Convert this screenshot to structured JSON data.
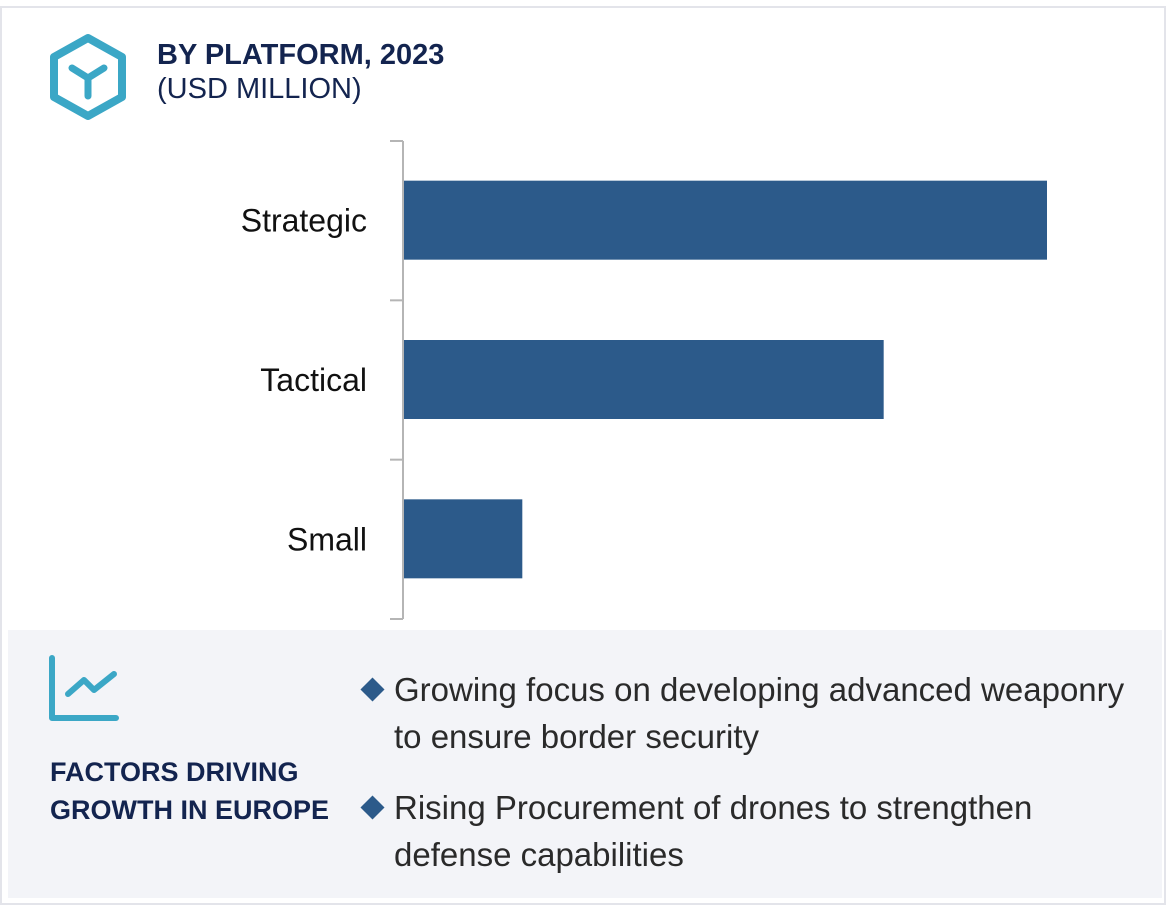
{
  "header": {
    "title": "BY PLATFORM, 2023",
    "subtitle": "(USD MILLION)",
    "icon": "hexagon-y-icon"
  },
  "chart_data": {
    "type": "bar",
    "orientation": "horizontal",
    "title": "BY PLATFORM, 2023",
    "unit": "(USD MILLION)",
    "categories": [
      "Strategic",
      "Tactical",
      "Small"
    ],
    "values": [
      100,
      74.6,
      18.4
    ],
    "value_note": "relative",
    "bar_color": "#2c5a8a",
    "grid": false,
    "legend": "none"
  },
  "factors": {
    "icon": "line-chart-icon",
    "heading": "FACTORS DRIVING GROWTH IN EUROPE",
    "items": [
      "Growing focus on developing advanced weaponry to ensure border security",
      "Rising Procurement of drones to strengthen defense capabilities"
    ]
  },
  "colors": {
    "accent": "#3ba7c6",
    "navy": "#13244f",
    "bar": "#2c5a8a",
    "panel": "#f3f4f8"
  }
}
